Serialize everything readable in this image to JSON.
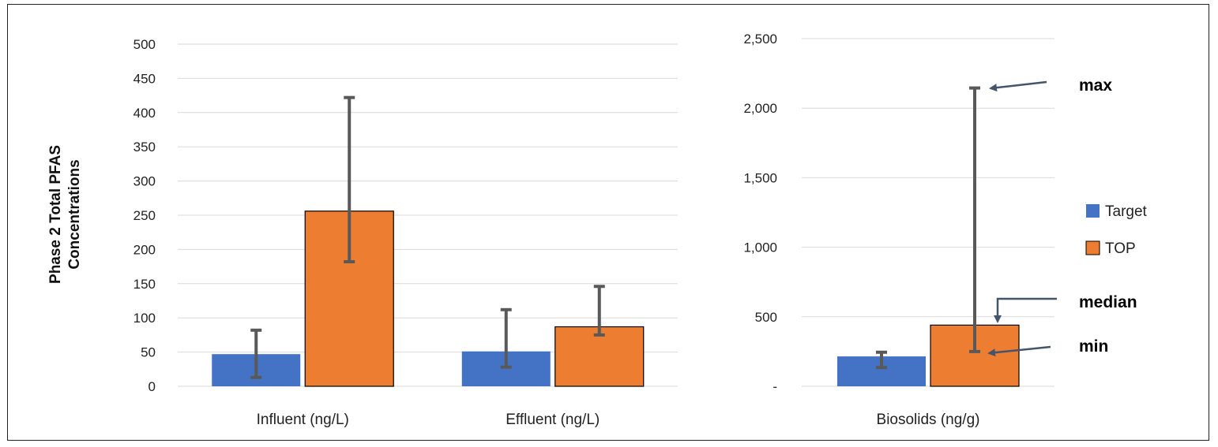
{
  "chart_data": [
    {
      "type": "bar",
      "ylabel_lines": [
        "Phase 2 Total PFAS",
        "Concentrations"
      ],
      "ylim": [
        0,
        500
      ],
      "yticks": [
        0,
        50,
        100,
        150,
        200,
        250,
        300,
        350,
        400,
        450,
        500
      ],
      "ytick_labels": [
        "0",
        "50",
        "100",
        "150",
        "200",
        "250",
        "300",
        "350",
        "400",
        "450",
        "500"
      ],
      "grid": true,
      "categories": [
        "Influent (ng/L)",
        "Effluent (ng/L)"
      ],
      "series": [
        {
          "name": "Target",
          "color": "#4472C4",
          "values": [
            47,
            51
          ],
          "min": [
            13,
            28
          ],
          "max": [
            82,
            112
          ]
        },
        {
          "name": "TOP",
          "color": "#ED7D31",
          "values": [
            256,
            87
          ],
          "min": [
            182,
            75
          ],
          "max": [
            422,
            146
          ]
        }
      ]
    },
    {
      "type": "bar",
      "ylim": [
        0,
        2500
      ],
      "yticks": [
        0,
        500,
        1000,
        1500,
        2000,
        2500
      ],
      "ytick_labels": [
        "-",
        "500",
        "1,000",
        "1,500",
        "2,000",
        "2,500"
      ],
      "grid": true,
      "categories": [
        "Biosolids (ng/g)"
      ],
      "series": [
        {
          "name": "Target",
          "color": "#4472C4",
          "values": [
            215
          ],
          "min": [
            135
          ],
          "max": [
            245
          ]
        },
        {
          "name": "TOP",
          "color": "#ED7D31",
          "values": [
            440
          ],
          "min": [
            250
          ],
          "max": [
            2145
          ]
        }
      ],
      "annotations": [
        "max",
        "median",
        "min"
      ]
    }
  ],
  "legend": {
    "placement": "right",
    "items": [
      {
        "label": "Target",
        "color": "#4472C4"
      },
      {
        "label": "TOP",
        "color": "#ED7D31"
      }
    ]
  },
  "colors": {
    "errorbar": "#595959",
    "grid": "#D9D9D9",
    "arrow": "#44546A"
  }
}
